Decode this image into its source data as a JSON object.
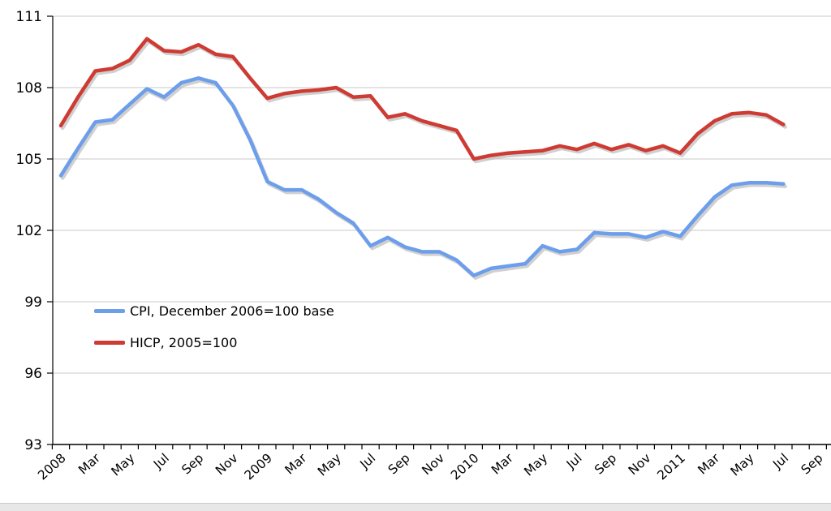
{
  "window": {
    "background_color": "#ffffff",
    "bottom_bar_color": "#e7e7e7"
  },
  "chart_data": {
    "type": "line",
    "title": "",
    "xlabel": "",
    "ylabel": "",
    "ylim": [
      93,
      111
    ],
    "y_ticks": [
      93,
      96,
      99,
      102,
      105,
      108,
      111
    ],
    "grid": true,
    "gridline_color": "#c9c9c9",
    "axis_color": "#000000",
    "legend_position": "inside-left-middle",
    "x_axis_tick_labels": [
      "2008",
      "Mar",
      "May",
      "Jul",
      "Sep",
      "Nov",
      "2009",
      "Mar",
      "May",
      "Jul",
      "Sep",
      "Nov",
      "2010",
      "Mar",
      "May",
      "Jul",
      "Sep",
      "Nov",
      "2011",
      "Mar",
      "May",
      "Jul",
      "Sep"
    ],
    "x_categories_monthly": [
      "Jan 2008",
      "Feb 2008",
      "Mar 2008",
      "Apr 2008",
      "May 2008",
      "Jun 2008",
      "Jul 2008",
      "Aug 2008",
      "Sep 2008",
      "Oct 2008",
      "Nov 2008",
      "Dec 2008",
      "Jan 2009",
      "Feb 2009",
      "Mar 2009",
      "Apr 2009",
      "May 2009",
      "Jun 2009",
      "Jul 2009",
      "Aug 2009",
      "Sep 2009",
      "Oct 2009",
      "Nov 2009",
      "Dec 2009",
      "Jan 2010",
      "Feb 2010",
      "Mar 2010",
      "Apr 2010",
      "May 2010",
      "Jun 2010",
      "Jul 2010",
      "Aug 2010",
      "Sep 2010",
      "Oct 2010",
      "Nov 2010",
      "Dec 2010",
      "Jan 2011",
      "Feb 2011",
      "Mar 2011",
      "Apr 2011",
      "May 2011",
      "Jun 2011",
      "Jul 2011"
    ],
    "series": [
      {
        "name": "CPI, December 2006=100 base",
        "color": "#6d9eeb",
        "values": [
          104.3,
          105.45,
          106.55,
          106.65,
          107.3,
          107.95,
          107.6,
          108.2,
          108.4,
          108.2,
          107.25,
          105.8,
          104.05,
          103.7,
          103.7,
          103.3,
          102.75,
          102.3,
          101.35,
          101.7,
          101.3,
          101.1,
          101.1,
          100.75,
          100.1,
          100.4,
          100.5,
          100.6,
          101.35,
          101.1,
          101.2,
          101.9,
          101.85,
          101.85,
          101.7,
          101.95,
          101.75,
          102.6,
          103.4,
          103.9,
          104.0,
          104.0,
          103.95
        ]
      },
      {
        "name": "HICP, 2005=100",
        "color": "#ce3b33",
        "values": [
          106.4,
          107.6,
          108.7,
          108.8,
          109.15,
          110.05,
          109.55,
          109.5,
          109.8,
          109.4,
          109.3,
          108.4,
          107.55,
          107.75,
          107.85,
          107.9,
          108.0,
          107.6,
          107.65,
          106.75,
          106.9,
          106.6,
          106.4,
          106.2,
          105.0,
          105.15,
          105.25,
          105.3,
          105.35,
          105.55,
          105.4,
          105.65,
          105.4,
          105.6,
          105.35,
          105.55,
          105.25,
          106.05,
          106.6,
          106.9,
          106.95,
          106.85,
          106.45
        ]
      }
    ]
  }
}
